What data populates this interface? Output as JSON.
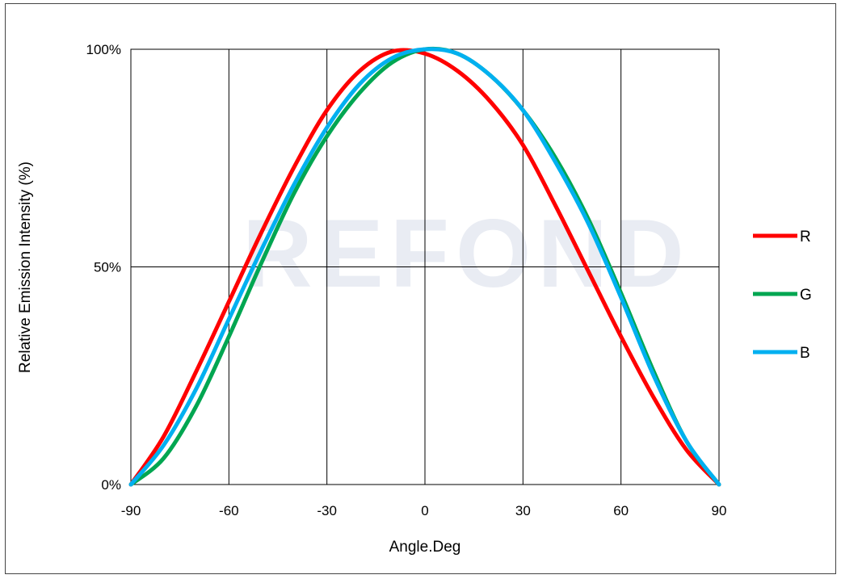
{
  "chart_data": {
    "type": "line",
    "title": "",
    "xlabel": "Angle.Deg",
    "ylabel": "Relative Emission Intensity (%)",
    "xlim": [
      -90,
      90
    ],
    "ylim": [
      0,
      100
    ],
    "x_ticks": [
      "-90",
      "-60",
      "-30",
      "0",
      "30",
      "60",
      "90"
    ],
    "y_ticks": [
      "0%",
      "50%",
      "100%"
    ],
    "grid": true,
    "legend_position": "right",
    "watermark": "REFOND",
    "x": [
      -90,
      -80,
      -70,
      -60,
      -50,
      -40,
      -30,
      -20,
      -10,
      0,
      10,
      20,
      30,
      40,
      50,
      60,
      70,
      80,
      90
    ],
    "series": [
      {
        "name": "R",
        "color": "#ff0000",
        "values": [
          0,
          11,
          26,
          42,
          58,
          73,
          86,
          95,
          99.5,
          99,
          95,
          88,
          78,
          64,
          49,
          34,
          20,
          8,
          0
        ]
      },
      {
        "name": "G",
        "color": "#00a651",
        "values": [
          0,
          6,
          18,
          34,
          51,
          67,
          80,
          90,
          97,
          100,
          99,
          94,
          86,
          75,
          61,
          44,
          26,
          10,
          0
        ]
      },
      {
        "name": "B",
        "color": "#00b0f0",
        "values": [
          0,
          9,
          22,
          38,
          54,
          69,
          82,
          92,
          98,
          100,
          99,
          94,
          86,
          74,
          60,
          43,
          25,
          10,
          0
        ]
      }
    ]
  }
}
